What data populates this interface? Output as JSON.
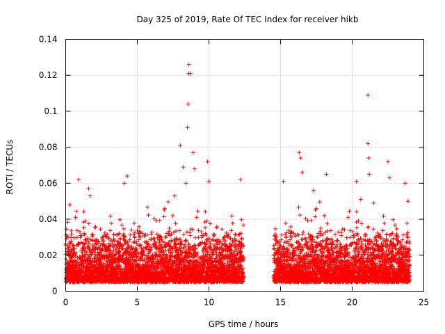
{
  "chart_data": {
    "type": "scatter",
    "title": "Day 325 of 2019, Rate Of TEC Index for receiver hikb",
    "xlabel": "GPS time / hours",
    "ylabel": "ROTI / TECUs",
    "xlim": [
      0,
      25
    ],
    "ylim": [
      0,
      0.14
    ],
    "x_ticks": [
      0,
      5,
      10,
      15,
      20,
      25
    ],
    "x_tick_labels": [
      "0",
      "5",
      "10",
      "15",
      "20",
      "25"
    ],
    "y_ticks": [
      0,
      0.02,
      0.04,
      0.06,
      0.08,
      0.1,
      0.12,
      0.14
    ],
    "y_tick_labels": [
      "0",
      "0.02",
      "0.04",
      "0.06",
      "0.08",
      "0.1",
      "0.12",
      "0.14"
    ],
    "grid": true,
    "marker": "+",
    "color": "#ff0000",
    "series": [
      {
        "name": "ROTI",
        "data_gap_hours": [
          12.4,
          14.5
        ],
        "note": "dense point cloud: baseline ~0.005–0.03 TECU/min over 0–12.4 h and 14.5–24 h",
        "notable_points": [
          {
            "x": 0.3,
            "y": 0.048
          },
          {
            "x": 0.9,
            "y": 0.062
          },
          {
            "x": 1.6,
            "y": 0.057
          },
          {
            "x": 1.7,
            "y": 0.053
          },
          {
            "x": 4.1,
            "y": 0.06
          },
          {
            "x": 4.3,
            "y": 0.064
          },
          {
            "x": 4.6,
            "y": 0.034
          },
          {
            "x": 7.6,
            "y": 0.053
          },
          {
            "x": 8.0,
            "y": 0.081
          },
          {
            "x": 8.2,
            "y": 0.069
          },
          {
            "x": 8.4,
            "y": 0.06
          },
          {
            "x": 8.5,
            "y": 0.091
          },
          {
            "x": 8.55,
            "y": 0.104
          },
          {
            "x": 8.6,
            "y": 0.121
          },
          {
            "x": 8.6,
            "y": 0.126
          },
          {
            "x": 8.7,
            "y": 0.121
          },
          {
            "x": 8.9,
            "y": 0.077
          },
          {
            "x": 9.0,
            "y": 0.068
          },
          {
            "x": 9.9,
            "y": 0.072
          },
          {
            "x": 10.0,
            "y": 0.061
          },
          {
            "x": 12.2,
            "y": 0.062
          },
          {
            "x": 15.2,
            "y": 0.061
          },
          {
            "x": 16.3,
            "y": 0.077
          },
          {
            "x": 16.4,
            "y": 0.074
          },
          {
            "x": 16.5,
            "y": 0.066
          },
          {
            "x": 17.3,
            "y": 0.056
          },
          {
            "x": 18.2,
            "y": 0.065
          },
          {
            "x": 20.3,
            "y": 0.061
          },
          {
            "x": 20.6,
            "y": 0.051
          },
          {
            "x": 21.1,
            "y": 0.109
          },
          {
            "x": 21.1,
            "y": 0.082
          },
          {
            "x": 21.15,
            "y": 0.074
          },
          {
            "x": 21.2,
            "y": 0.065
          },
          {
            "x": 21.5,
            "y": 0.049
          },
          {
            "x": 22.5,
            "y": 0.072
          },
          {
            "x": 22.6,
            "y": 0.063
          },
          {
            "x": 23.7,
            "y": 0.06
          },
          {
            "x": 23.9,
            "y": 0.05
          }
        ]
      }
    ]
  }
}
